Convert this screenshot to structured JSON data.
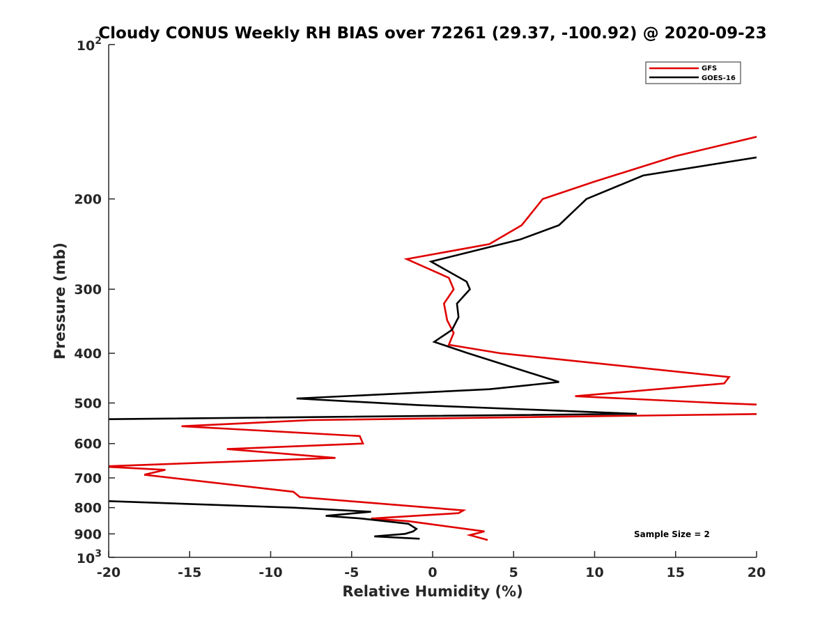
{
  "chart_data": {
    "type": "line",
    "title": "Cloudy CONUS Weekly RH BIAS over 72261 (29.37, -100.92) @ 2020-09-23",
    "xlabel": "Relative Humidity (%)",
    "ylabel": "Pressure (mb)",
    "xlim": [
      -20,
      20
    ],
    "ylim": [
      100,
      1000
    ],
    "y_scale": "log",
    "y_reversed": true,
    "grid": false,
    "legend_position": "top-right",
    "x_ticks": [
      -20,
      -15,
      -10,
      -5,
      0,
      5,
      10,
      15,
      20
    ],
    "y_ticks": [
      {
        "value": 100,
        "base": "10",
        "exp": "2"
      },
      {
        "value": 200,
        "label": "200"
      },
      {
        "value": 300,
        "label": "300"
      },
      {
        "value": 400,
        "label": "400"
      },
      {
        "value": 500,
        "label": "500"
      },
      {
        "value": 600,
        "label": "600"
      },
      {
        "value": 700,
        "label": "700"
      },
      {
        "value": 800,
        "label": "800"
      },
      {
        "value": 900,
        "label": "900"
      },
      {
        "value": 1000,
        "base": "10",
        "exp": "3"
      }
    ],
    "series": [
      {
        "name": "GFS",
        "color": "#e00000",
        "points": [
          [
            20.5,
            150
          ],
          [
            15,
            165
          ],
          [
            10,
            185
          ],
          [
            6.8,
            200
          ],
          [
            5.5,
            225
          ],
          [
            3.5,
            245
          ],
          [
            -1.6,
            262
          ],
          [
            1,
            285
          ],
          [
            1.3,
            300
          ],
          [
            0.7,
            320
          ],
          [
            0.9,
            345
          ],
          [
            1.3,
            365
          ],
          [
            1,
            385
          ],
          [
            4.2,
            400
          ],
          [
            18.3,
            445
          ],
          [
            18,
            458
          ],
          [
            8.8,
            485
          ],
          [
            17.5,
            500
          ],
          [
            21,
            505
          ],
          [
            21,
            525
          ],
          [
            -7.5,
            540
          ],
          [
            -15.5,
            555
          ],
          [
            -4.5,
            580
          ],
          [
            -4.3,
            600
          ],
          [
            -12.7,
            615
          ],
          [
            -6,
            640
          ],
          [
            -20.5,
            665
          ],
          [
            -16.5,
            675
          ],
          [
            -17.8,
            690
          ],
          [
            -8.6,
            745
          ],
          [
            -8.2,
            763
          ],
          [
            1.9,
            810
          ],
          [
            1.6,
            820
          ],
          [
            -3.8,
            840
          ],
          [
            -1.5,
            850
          ],
          [
            3.2,
            890
          ],
          [
            2.3,
            905
          ],
          [
            3.4,
            925
          ]
        ]
      },
      {
        "name": "GOES-16",
        "color": "#000000",
        "points": [
          [
            20.5,
            165
          ],
          [
            13,
            180
          ],
          [
            9.5,
            200
          ],
          [
            7.8,
            225
          ],
          [
            5.4,
            240
          ],
          [
            -0.1,
            265
          ],
          [
            2.1,
            290
          ],
          [
            2.3,
            300
          ],
          [
            1.5,
            320
          ],
          [
            1.6,
            340
          ],
          [
            1.2,
            360
          ],
          [
            0.1,
            380
          ],
          [
            2.2,
            400
          ],
          [
            7.8,
            455
          ],
          [
            3.5,
            470
          ],
          [
            -8.4,
            490
          ],
          [
            -0.8,
            505
          ],
          [
            12.6,
            525
          ],
          [
            -21,
            538
          ],
          [
            -21,
            775
          ],
          [
            -8.6,
            800
          ],
          [
            -3.8,
            815
          ],
          [
            -6.6,
            830
          ],
          [
            -4.4,
            840
          ],
          [
            -1.5,
            860
          ],
          [
            -1,
            880
          ],
          [
            -1.2,
            890
          ],
          [
            -1.7,
            900
          ],
          [
            -3.6,
            910
          ],
          [
            -0.8,
            920
          ]
        ]
      }
    ],
    "annotation": "Sample Size = 2"
  }
}
